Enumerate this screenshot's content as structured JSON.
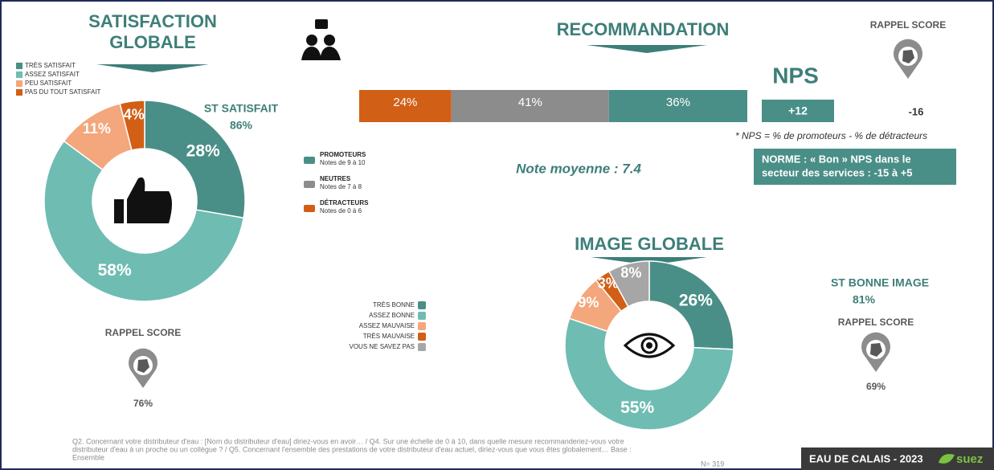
{
  "chart_data": [
    {
      "type": "pie",
      "title": "SATISFACTION GLOBALE",
      "categories": [
        "TRÈS SATISFAIT",
        "ASSEZ SATISFAIT",
        "PEU SATISFAIT",
        "PAS DU TOUT SATISFAIT"
      ],
      "values": [
        28,
        58,
        11,
        4
      ],
      "value_labels": [
        "28%",
        "58%",
        "11%",
        "4%"
      ],
      "colors": [
        "#4a8f87",
        "#6fbcb3",
        "#f4a67c",
        "#d25f16"
      ],
      "subtotal": {
        "label": "ST SATISFAIT",
        "value": 86,
        "value_label": "86%"
      },
      "recall": {
        "label": "RAPPEL SCORE",
        "value": 76,
        "value_label": "76%"
      }
    },
    {
      "type": "bar",
      "title": "RECOMMANDATION",
      "series": [
        {
          "name": "DÉTRACTEURS",
          "description": "Notes de 0 à 6",
          "color": "#d25f16",
          "values": [
            24
          ],
          "value_labels": [
            "24%"
          ]
        },
        {
          "name": "NEUTRES",
          "description": "Notes de 7 à 8",
          "color": "#8c8c8c",
          "values": [
            41
          ],
          "value_labels": [
            "41%"
          ]
        },
        {
          "name": "PROMOTEURS",
          "description": "Notes de 9 à 10",
          "color": "#4a8f87",
          "values": [
            36
          ],
          "value_labels": [
            "36%"
          ]
        }
      ],
      "mean_note": "Note moyenne : 7.4",
      "nps": {
        "title": "NPS",
        "value": 12,
        "value_label": "+12",
        "recall": {
          "label": "RAPPEL SCORE",
          "value": -16
        },
        "definition": "* NPS = % de promoteurs - % de détracteurs",
        "norm": [
          "NORME : « Bon » NPS dans le",
          "secteur des services : -15 à +5"
        ]
      }
    },
    {
      "type": "pie",
      "title": "IMAGE GLOBALE",
      "categories": [
        "TRÈS BONNE",
        "ASSEZ BONNE",
        "ASSEZ MAUVAISE",
        "TRÈS MAUVAISE",
        "VOUS NE SAVEZ PAS"
      ],
      "values": [
        26,
        55,
        9,
        3,
        8
      ],
      "value_labels": [
        "26%",
        "55%",
        "9%",
        "3%",
        "8%"
      ],
      "colors": [
        "#4a8f87",
        "#6fbcb3",
        "#f4a67c",
        "#d25f16",
        "#a6a6a6"
      ],
      "subtotal": {
        "label": "ST BONNE IMAGE",
        "value": 81,
        "value_label": "81%"
      },
      "recall": {
        "label": "RAPPEL SCORE",
        "value": 69,
        "value_label": "69%"
      }
    }
  ],
  "footer": {
    "question_note": [
      "Q2. Concernant votre distributeur d'eau : [Nom du distributeur d'eau] diriez-vous en avoir… / Q4. Sur une échelle de 0 à 10, dans quelle mesure recommanderiez-vous votre",
      "distributeur d'eau à un proche ou un collègue ? / Q5. Concernant l'ensemble des prestations de votre distributeur d'eau actuel, diriez-vous que vous êtes globalement… Base :",
      "Ensemble"
    ],
    "base": "N= 319",
    "brand": "EAU DE CALAIS - 2023",
    "logo": "suez"
  }
}
